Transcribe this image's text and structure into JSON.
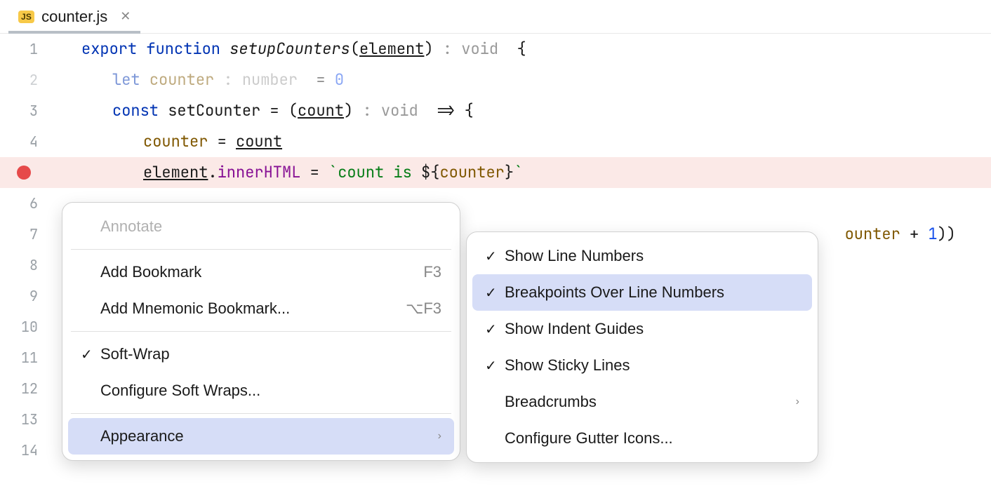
{
  "tab": {
    "badge": "JS",
    "filename": "counter.js"
  },
  "colors": {
    "keyword": "#0033b3",
    "function": "#1a1a1a",
    "hint": "#999999",
    "variable": "#7f5700",
    "property": "#871094",
    "string": "#067d17",
    "number": "#1750eb",
    "breakpoint_bg": "#fbe9e7",
    "breakpoint_dot": "#e64a4a",
    "menu_highlight": "#d6ddf7",
    "gutter_text": "#9aa0a6",
    "tab_badge_bg": "#f7c948"
  },
  "lines": [
    {
      "num": "1",
      "tokens": [
        {
          "t": "export",
          "c": "kw"
        },
        {
          "t": " "
        },
        {
          "t": "function",
          "c": "kw"
        },
        {
          "t": " "
        },
        {
          "t": "setupCounters",
          "c": "fn"
        },
        {
          "t": "(",
          "c": "punct"
        },
        {
          "t": "element",
          "c": "param"
        },
        {
          "t": ")",
          "c": "punct"
        },
        {
          "t": " : void ",
          "c": "hint"
        },
        {
          "t": " {",
          "c": "punct"
        }
      ],
      "indent": 1
    },
    {
      "num": "2",
      "dim": true,
      "tokens": [
        {
          "t": "let",
          "c": "kw"
        },
        {
          "t": " "
        },
        {
          "t": "counter",
          "c": "var"
        },
        {
          "t": " : number ",
          "c": "hint"
        },
        {
          "t": " = ",
          "c": "punct"
        },
        {
          "t": "0",
          "c": "num"
        }
      ],
      "indent": 2
    },
    {
      "num": "3",
      "tokens": [
        {
          "t": "const",
          "c": "kw"
        },
        {
          "t": " "
        },
        {
          "t": "setCounter",
          "c": "ident"
        },
        {
          "t": " = (",
          "c": "punct"
        },
        {
          "t": "count",
          "c": "param"
        },
        {
          "t": ")",
          "c": "punct"
        },
        {
          "t": " : void ",
          "c": "hint"
        },
        {
          "t": " => {",
          "c": "punct"
        }
      ],
      "indent": 2
    },
    {
      "num": "4",
      "tokens": [
        {
          "t": "counter",
          "c": "var"
        },
        {
          "t": " = ",
          "c": "punct"
        },
        {
          "t": "count",
          "c": "param"
        }
      ],
      "indent": 3
    },
    {
      "num": "",
      "breakpoint": true,
      "tokens": [
        {
          "t": "element",
          "c": "param"
        },
        {
          "t": ".",
          "c": "punct"
        },
        {
          "t": "innerHTML",
          "c": "prop"
        },
        {
          "t": " = ",
          "c": "punct"
        },
        {
          "t": "`count is ",
          "c": "str"
        },
        {
          "t": "${",
          "c": "punct"
        },
        {
          "t": "counter",
          "c": "template-var"
        },
        {
          "t": "}",
          "c": "punct"
        },
        {
          "t": "`",
          "c": "str"
        }
      ],
      "indent": 3
    },
    {
      "num": "6",
      "tokens": [],
      "indent": 0
    },
    {
      "num": "7",
      "tokens": [
        {
          "t": "ounter",
          "c": "var"
        },
        {
          "t": " + ",
          "c": "punct"
        },
        {
          "t": "1",
          "c": "num"
        },
        {
          "t": "))",
          "c": "punct"
        }
      ],
      "indent": 0,
      "tail": true
    },
    {
      "num": "8",
      "tokens": [],
      "indent": 0
    },
    {
      "num": "9",
      "tokens": [],
      "indent": 0
    },
    {
      "num": "10",
      "tokens": [],
      "indent": 0
    },
    {
      "num": "11",
      "tokens": [],
      "indent": 0
    },
    {
      "num": "12",
      "tokens": [],
      "indent": 0
    },
    {
      "num": "13",
      "tokens": [],
      "indent": 0
    },
    {
      "num": "14",
      "tokens": [],
      "indent": 0
    }
  ],
  "menu1": {
    "items": [
      {
        "type": "item",
        "label": "Annotate",
        "disabled": true
      },
      {
        "type": "sep"
      },
      {
        "type": "item",
        "label": "Add Bookmark",
        "shortcut": "F3"
      },
      {
        "type": "item",
        "label": "Add Mnemonic Bookmark...",
        "shortcut": "⌥F3"
      },
      {
        "type": "sep"
      },
      {
        "type": "item",
        "label": "Soft-Wrap",
        "checked": true
      },
      {
        "type": "item",
        "label": "Configure Soft Wraps..."
      },
      {
        "type": "sep"
      },
      {
        "type": "item",
        "label": "Appearance",
        "submenu": true,
        "highlight": true
      }
    ]
  },
  "menu2": {
    "items": [
      {
        "type": "item",
        "label": "Show Line Numbers",
        "checked": true
      },
      {
        "type": "item",
        "label": "Breakpoints Over Line Numbers",
        "checked": true,
        "highlight": true
      },
      {
        "type": "item",
        "label": "Show Indent Guides",
        "checked": true
      },
      {
        "type": "item",
        "label": "Show Sticky Lines",
        "checked": true
      },
      {
        "type": "item",
        "label": "Breadcrumbs",
        "submenu": true
      },
      {
        "type": "item",
        "label": "Configure Gutter Icons..."
      }
    ]
  }
}
